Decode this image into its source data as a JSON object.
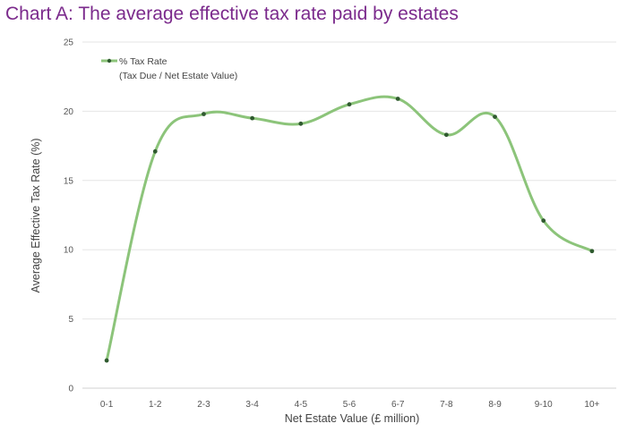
{
  "page": {
    "title": "Chart A: The average effective tax rate paid by estates"
  },
  "chart_data": {
    "type": "line",
    "title": "Chart A: The average effective tax rate paid by estates",
    "xlabel": "Net Estate Value (£ million)",
    "ylabel": "Average Effective Tax Rate (%)",
    "categories": [
      "0-1",
      "1-2",
      "2-3",
      "3-4",
      "4-5",
      "5-6",
      "6-7",
      "7-8",
      "8-9",
      "9-10",
      "10+"
    ],
    "series": [
      {
        "name": "% Tax Rate",
        "name_line2": "(Tax Due / Net Estate Value)",
        "values": [
          2.0,
          17.1,
          19.8,
          19.5,
          19.1,
          20.5,
          20.9,
          18.3,
          19.6,
          12.1,
          9.9
        ],
        "color": "#8cc47a",
        "marker_color": "#2f5a2f"
      }
    ],
    "ylim": [
      0,
      25
    ],
    "yticks": [
      0,
      5,
      10,
      15,
      20,
      25
    ],
    "grid": true,
    "legend_position": "top-left",
    "smooth": true
  },
  "colors": {
    "title": "#7b2a8c",
    "grid": "#e6e6e6"
  }
}
